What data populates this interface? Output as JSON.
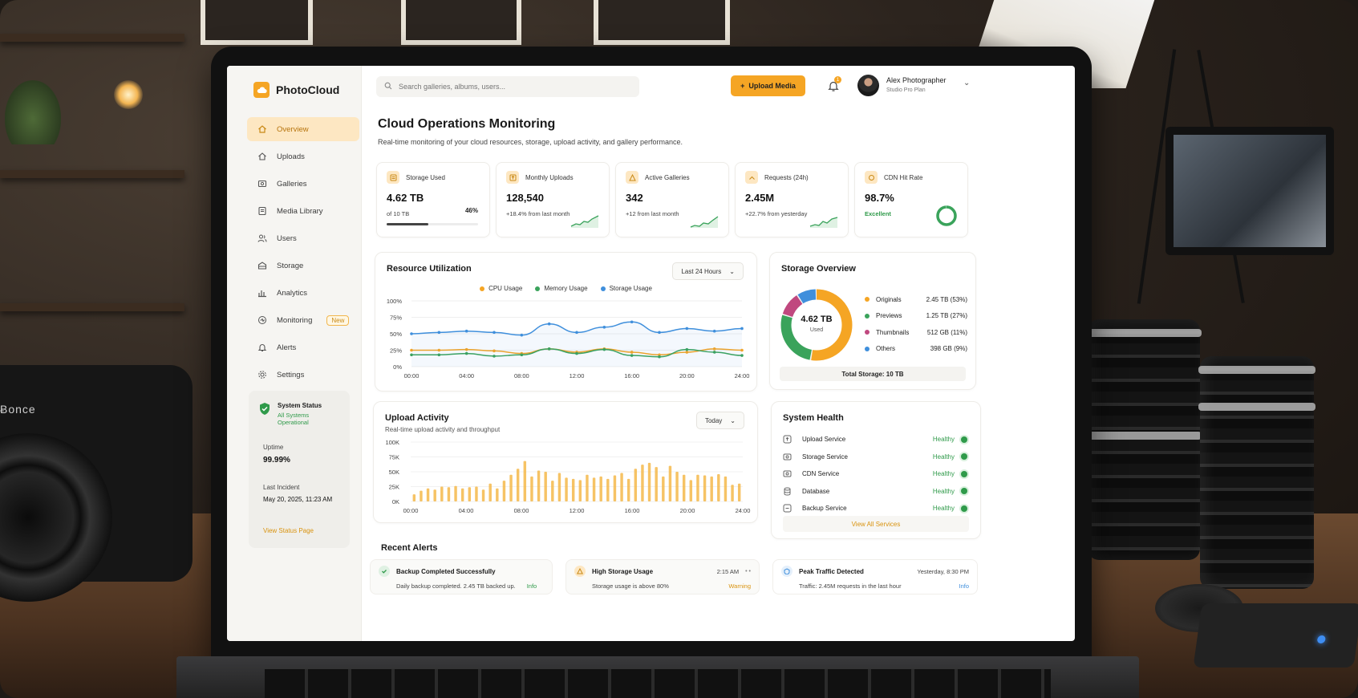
{
  "app": {
    "name": "PhotoCloud"
  },
  "search": {
    "placeholder": "Search galleries, albums, users..."
  },
  "header": {
    "upload_label": "Upload Media",
    "notification_count": "1",
    "user_name": "Alex Photographer",
    "user_plan": "Studio Pro Plan"
  },
  "sidebar": {
    "items": [
      {
        "label": "Overview",
        "icon": "home-icon",
        "active": true
      },
      {
        "label": "Uploads",
        "icon": "upload-icon"
      },
      {
        "label": "Galleries",
        "icon": "image-icon"
      },
      {
        "label": "Media Library",
        "icon": "library-icon"
      },
      {
        "label": "Users",
        "icon": "users-icon"
      },
      {
        "label": "Storage",
        "icon": "storage-icon"
      },
      {
        "label": "Analytics",
        "icon": "analytics-icon"
      },
      {
        "label": "Monitoring",
        "icon": "monitoring-icon",
        "badge": "New"
      },
      {
        "label": "Alerts",
        "icon": "bell-icon"
      },
      {
        "label": "Settings",
        "icon": "gear-icon"
      }
    ],
    "status": {
      "title": "System Status",
      "subtitle": "All Systems Operational",
      "uptime_label": "Uptime",
      "uptime_value": "99.99%",
      "incident_label": "Last Incident",
      "incident_value": "May 20, 2025, 11:23 AM",
      "link": "View Status Page"
    }
  },
  "page": {
    "title": "Cloud Operations Monitoring",
    "subtitle": "Real-time monitoring of your cloud resources, storage, upload activity, and gallery performance."
  },
  "kpis": [
    {
      "label": "Storage Used",
      "value": "4.62 TB",
      "sub": "of 10 TB",
      "pct": "46%",
      "progress": 0.46
    },
    {
      "label": "Monthly Uploads",
      "value": "128,540",
      "sub": "+18.4% from last month"
    },
    {
      "label": "Active Galleries",
      "value": "342",
      "sub": "+12 from last month"
    },
    {
      "label": "Requests (24h)",
      "value": "2.45M",
      "sub": "+22.7% from yesterday"
    },
    {
      "label": "CDN Hit Rate",
      "value": "98.7%",
      "sub": "Excellent",
      "ring": 0.987
    }
  ],
  "resource": {
    "title": "Resource Utilization",
    "range": "Last 24 Hours",
    "legend": [
      "CPU Usage",
      "Memory Usage",
      "Storage Usage"
    ],
    "colors": [
      "#f5a524",
      "#3aa35b",
      "#3f8fdc"
    ]
  },
  "upload_activity": {
    "title": "Upload Activity",
    "subtitle": "Real-time upload activity and throughput",
    "range": "Today"
  },
  "storage": {
    "title": "Storage Overview",
    "center_value": "4.62 TB",
    "center_label": "Used",
    "items": [
      {
        "name": "Originals",
        "value": "2.45 TB (53%)",
        "color": "#f5a524"
      },
      {
        "name": "Previews",
        "value": "1.25 TB (27%)",
        "color": "#3aa35b"
      },
      {
        "name": "Thumbnails",
        "value": "512 GB (11%)",
        "color": "#c0487f"
      },
      {
        "name": "Others",
        "value": "398 GB (9%)",
        "color": "#3f8fdc"
      }
    ],
    "total": "Total Storage: 10 TB"
  },
  "health": {
    "title": "System Health",
    "services": [
      {
        "name": "Upload Service",
        "status": "Healthy",
        "icon": "upload-service-icon"
      },
      {
        "name": "Storage Service",
        "status": "Healthy",
        "icon": "storage-service-icon"
      },
      {
        "name": "CDN Service",
        "status": "Healthy",
        "icon": "cdn-service-icon"
      },
      {
        "name": "Database",
        "status": "Healthy",
        "icon": "database-icon"
      },
      {
        "name": "Backup Service",
        "status": "Healthy",
        "icon": "backup-service-icon"
      }
    ],
    "link": "View All Services"
  },
  "alerts": {
    "title": "Recent Alerts",
    "items": [
      {
        "title": "Backup Completed Successfully",
        "body": "Daily backup completed. 2.45 TB backed up.",
        "tag": "Info",
        "time": ""
      },
      {
        "title": "High Storage Usage",
        "body": "Storage usage is above 80%",
        "tag": "Warning",
        "time": "2:15 AM"
      },
      {
        "title": "Peak Traffic Detected",
        "body": "Traffic: 2.45M requests in the last hour",
        "tag": "Info",
        "time": "Yesterday, 8:30 PM"
      }
    ]
  },
  "chart_data": [
    {
      "type": "line",
      "title": "Resource Utilization",
      "x": [
        "00:00",
        "02:00",
        "04:00",
        "06:00",
        "08:00",
        "10:00",
        "12:00",
        "14:00",
        "16:00",
        "18:00",
        "20:00",
        "22:00",
        "24:00"
      ],
      "xticks": [
        "00:00",
        "04:00",
        "08:00",
        "12:00",
        "16:00",
        "20:00",
        "24:00"
      ],
      "yticks": [
        "100%",
        "75%",
        "50%",
        "25%",
        "0%"
      ],
      "ylim": [
        0,
        100
      ],
      "series": [
        {
          "name": "CPU Usage",
          "values": [
            25,
            25,
            26,
            24,
            20,
            27,
            22,
            27,
            22,
            18,
            22,
            27,
            25
          ]
        },
        {
          "name": "Memory Usage",
          "values": [
            18,
            18,
            20,
            16,
            18,
            27,
            20,
            26,
            17,
            15,
            26,
            22,
            17
          ]
        },
        {
          "name": "Storage Usage",
          "values": [
            50,
            52,
            54,
            52,
            48,
            65,
            52,
            60,
            68,
            52,
            58,
            54,
            58
          ]
        }
      ],
      "grid": true,
      "legend": "top"
    },
    {
      "type": "bar",
      "title": "Upload Activity",
      "xticks": [
        "00:00",
        "04:00",
        "08:00",
        "12:00",
        "16:00",
        "20:00",
        "24:00"
      ],
      "yticks": [
        "100K",
        "75K",
        "50K",
        "25K",
        "0K"
      ],
      "ylim": [
        0,
        100000
      ],
      "values": [
        12000,
        18000,
        22000,
        20000,
        25000,
        24000,
        26000,
        22000,
        24000,
        25000,
        20000,
        30000,
        22000,
        35000,
        45000,
        55000,
        68000,
        42000,
        52000,
        50000,
        35000,
        48000,
        40000,
        38000,
        36000,
        45000,
        40000,
        42000,
        38000,
        44000,
        48000,
        38000,
        55000,
        62000,
        65000,
        58000,
        42000,
        60000,
        50000,
        45000,
        36000,
        45000,
        44000,
        42000,
        46000,
        42000,
        28000,
        30000
      ]
    }
  ]
}
